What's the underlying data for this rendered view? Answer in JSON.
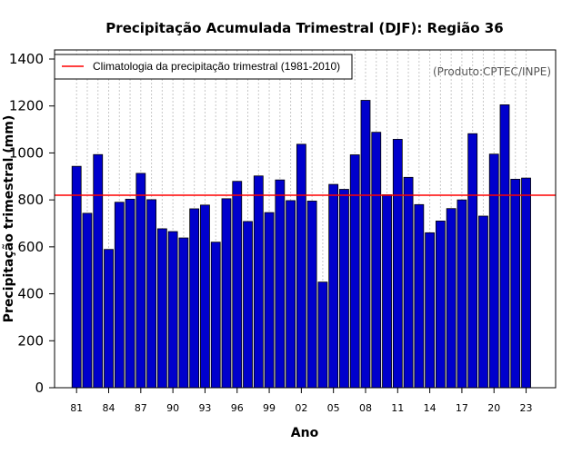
{
  "chart_data": {
    "type": "bar",
    "title": "Precipitação Acumulada Trimestral (DJF): Região 36",
    "xlabel": "Ano",
    "ylabel": "Precipitação trimestral (mm)",
    "ylim": [
      0,
      1400
    ],
    "yticks": [
      0,
      200,
      400,
      600,
      800,
      1000,
      1200,
      1400
    ],
    "xtick_labels": [
      "81",
      "84",
      "87",
      "90",
      "93",
      "96",
      "99",
      "02",
      "05",
      "08",
      "11",
      "14",
      "17",
      "20",
      "23"
    ],
    "categories": [
      "1981",
      "1982",
      "1983",
      "1984",
      "1985",
      "1986",
      "1987",
      "1988",
      "1989",
      "1990",
      "1991",
      "1992",
      "1993",
      "1994",
      "1995",
      "1996",
      "1997",
      "1998",
      "1999",
      "2000",
      "2001",
      "2002",
      "2003",
      "2004",
      "2005",
      "2006",
      "2007",
      "2008",
      "2009",
      "2010",
      "2011",
      "2012",
      "2013",
      "2014",
      "2015",
      "2016",
      "2017",
      "2018",
      "2019",
      "2020",
      "2021",
      "2022",
      "2023"
    ],
    "values": [
      943,
      743,
      993,
      589,
      790,
      803,
      913,
      801,
      677,
      665,
      638,
      762,
      778,
      620,
      805,
      879,
      708,
      902,
      746,
      885,
      797,
      1037,
      795,
      450,
      866,
      845,
      992,
      1224,
      1088,
      822,
      1058,
      896,
      780,
      660,
      710,
      763,
      800,
      1082,
      731,
      995,
      1205,
      888,
      893
    ],
    "bar_color": "#0000cc",
    "climatology": {
      "label": "Climatologia da precipitação trimestral (1981-2010)",
      "value": 820,
      "color": "#ff0000"
    },
    "legend_position": "top-left",
    "grid": "vertical dotted",
    "credit": "(Produto:CPTEC/INPE)"
  }
}
